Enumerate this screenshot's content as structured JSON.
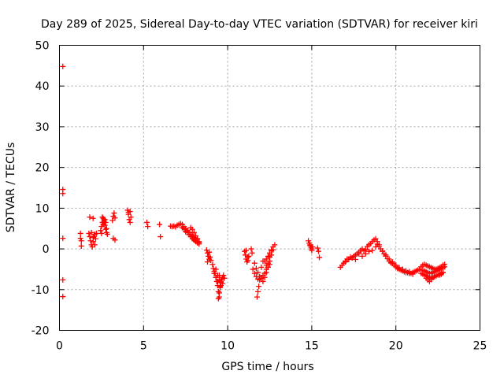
{
  "chart_data": {
    "type": "scatter",
    "title": "Day 289 of 2025, Sidereal Day-to-day VTEC variation (SDTVAR) for receiver kiri",
    "xlabel": "GPS time / hours",
    "ylabel": "SDTVAR / TECUs",
    "xlim": [
      0,
      25
    ],
    "ylim": [
      -20,
      50
    ],
    "grid": true,
    "marker": "+",
    "marker_color": "#ff0000",
    "xticks": [
      0,
      5,
      10,
      15,
      20,
      25
    ],
    "yticks": [
      -20,
      -10,
      0,
      10,
      20,
      30,
      40,
      50
    ],
    "xtick_labels": [
      "0",
      "5",
      "10",
      "15",
      "20",
      "25"
    ],
    "ytick_labels": [
      "-20",
      "-10",
      "0",
      "10",
      "20",
      "30",
      "40",
      "50"
    ],
    "series": [
      {
        "name": "SDTVAR",
        "x": [
          0.2,
          0.2,
          0.2,
          0.2,
          0.2,
          0.2,
          1.25,
          1.25,
          1.3,
          1.3,
          1.75,
          1.8,
          1.85,
          1.9,
          1.95,
          2.0,
          2.05,
          2.1,
          2.15,
          1.8,
          1.9,
          2.0,
          2.1,
          2.2,
          2.0,
          2.45,
          2.5,
          2.55,
          2.6,
          2.65,
          2.7,
          2.75,
          2.8,
          2.85,
          2.5,
          2.6,
          2.7,
          2.8,
          2.55,
          2.65,
          2.75,
          3.15,
          3.2,
          3.25,
          3.3,
          3.2,
          3.3,
          4.05,
          4.1,
          4.15,
          4.2,
          4.25,
          4.1,
          4.2,
          5.2,
          5.25,
          5.95,
          6.0,
          6.6,
          6.7,
          6.8,
          6.9,
          7.0,
          7.1,
          7.2,
          7.3,
          7.4,
          7.5,
          7.6,
          7.7,
          7.8,
          7.9,
          8.0,
          8.1,
          8.2,
          8.3,
          7.3,
          7.4,
          7.5,
          7.6,
          7.7,
          7.8,
          7.9,
          8.0,
          8.1,
          8.2,
          7.5,
          7.6,
          7.7,
          7.8,
          7.9,
          8.0,
          8.1,
          8.2,
          8.3,
          7.8,
          7.9,
          8.0,
          8.1,
          8.2,
          8.3,
          8.75,
          8.8,
          8.85,
          8.9,
          8.95,
          9.0,
          8.8,
          8.9,
          9.1,
          9.15,
          9.2,
          9.25,
          9.3,
          9.35,
          9.4,
          9.45,
          9.5,
          9.55,
          9.6,
          9.65,
          9.7,
          9.75,
          9.8,
          9.2,
          9.3,
          9.4,
          9.5,
          9.6,
          9.7,
          9.3,
          9.4,
          9.5,
          9.6,
          9.45,
          9.5,
          9.55,
          9.6,
          11.0,
          11.05,
          11.1,
          11.15,
          11.2,
          11.25,
          11.1,
          11.2,
          11.4,
          11.45,
          11.5,
          11.6,
          11.7,
          11.8,
          11.9,
          12.0,
          12.1,
          11.6,
          11.7,
          11.8,
          11.9,
          11.75,
          11.8,
          11.85,
          12.1,
          12.2,
          12.3,
          12.4,
          12.5,
          12.6,
          12.7,
          12.8,
          12.2,
          12.3,
          12.4,
          12.5,
          12.6,
          12.7,
          12.2,
          12.3,
          12.4,
          12.5,
          12.6,
          12.3,
          12.4,
          12.5,
          12.0,
          12.1,
          14.8,
          14.85,
          14.9,
          14.95,
          15.0,
          15.05,
          14.9,
          15.0,
          15.35,
          15.4,
          15.45,
          16.7,
          16.8,
          16.9,
          17.0,
          17.1,
          17.2,
          17.3,
          17.4,
          17.5,
          17.6,
          17.7,
          17.8,
          17.9,
          18.0,
          18.1,
          18.2,
          18.3,
          18.4,
          18.5,
          18.6,
          18.7,
          18.8,
          18.9,
          19.0,
          17.0,
          17.2,
          17.4,
          17.6,
          17.8,
          18.0,
          18.2,
          18.4,
          18.6,
          18.8,
          18.9,
          19.0,
          19.1,
          19.2,
          19.3,
          19.4,
          19.5,
          19.6,
          19.7,
          19.8,
          19.9,
          20.0,
          20.1,
          20.2,
          20.3,
          20.4,
          20.5,
          20.6,
          20.7,
          20.8,
          20.9,
          21.0,
          21.1,
          21.2,
          21.3,
          19.2,
          19.4,
          19.6,
          19.8,
          20.0,
          20.2,
          20.4,
          20.6,
          20.8,
          21.0,
          21.4,
          21.5,
          21.6,
          21.7,
          21.8,
          21.9,
          22.0,
          22.1,
          22.2,
          22.3,
          22.4,
          22.5,
          22.6,
          22.7,
          22.8,
          22.9,
          21.5,
          21.6,
          21.7,
          21.8,
          21.9,
          22.0,
          22.1,
          22.2,
          22.3,
          22.4,
          22.5,
          22.6,
          22.7,
          22.8,
          21.6,
          21.7,
          21.8,
          21.9,
          22.0,
          22.1,
          22.2,
          22.3,
          22.4,
          22.5,
          22.6,
          22.7,
          22.8,
          22.9,
          21.8,
          21.9,
          22.0,
          22.1,
          22.2,
          22.3,
          22.6,
          22.7,
          22.8
        ],
        "y": [
          44.8,
          14.6,
          13.6,
          2.6,
          -7.6,
          -11.7,
          3.8,
          2.6,
          0.7,
          2.0,
          3.8,
          3.0,
          2.0,
          1.0,
          0.5,
          1.8,
          3.0,
          3.6,
          2.5,
          7.8,
          4.0,
          2.8,
          1.0,
          3.8,
          7.5,
          4.5,
          5.5,
          6.5,
          7.5,
          6.8,
          5.8,
          4.8,
          4.0,
          3.6,
          3.8,
          6.0,
          7.2,
          5.0,
          7.8,
          7.2,
          6.5,
          7.0,
          8.0,
          8.8,
          7.6,
          2.6,
          2.2,
          9.5,
          8.5,
          7.2,
          6.5,
          7.8,
          9.0,
          9.2,
          6.5,
          5.5,
          6.0,
          3.0,
          5.6,
          5.5,
          5.6,
          5.4,
          5.8,
          6.0,
          6.2,
          6.0,
          5.5,
          5.0,
          4.5,
          4.0,
          3.5,
          3.0,
          2.5,
          2.0,
          1.8,
          1.5,
          5.2,
          5.0,
          4.8,
          4.4,
          4.0,
          3.6,
          3.2,
          2.8,
          2.6,
          2.4,
          4.2,
          4.0,
          3.5,
          3.0,
          2.5,
          2.2,
          1.8,
          1.5,
          1.2,
          5.2,
          4.8,
          4.0,
          3.2,
          2.5,
          1.8,
          -0.3,
          -1.0,
          -1.8,
          -2.5,
          -2.0,
          -2.8,
          -3.2,
          -0.8,
          -3.8,
          -4.8,
          -5.5,
          -6.0,
          -7.0,
          -8.0,
          -9.0,
          -10.5,
          -11.8,
          -9.5,
          -8.0,
          -7.5,
          -7.0,
          -6.5,
          -7.2,
          -6.0,
          -7.0,
          -8.0,
          -6.5,
          -7.5,
          -8.5,
          -5.0,
          -6.5,
          -7.8,
          -9.0,
          -12.2,
          -10.8,
          -9.2,
          -8.2,
          -0.6,
          -1.5,
          -2.5,
          -3.2,
          -2.8,
          -1.8,
          -0.4,
          -2.0,
          0.0,
          -1.0,
          -5.0,
          -6.0,
          -6.8,
          -7.4,
          -7.6,
          -7.2,
          -6.5,
          -3.5,
          -4.8,
          -5.8,
          -6.8,
          -11.8,
          -10.5,
          -9.2,
          -8.0,
          -7.0,
          -5.8,
          -4.5,
          -3.0,
          -1.5,
          -0.2,
          1.0,
          -6.0,
          -5.0,
          -3.5,
          -2.0,
          -0.5,
          0.5,
          -3.0,
          -2.5,
          -1.8,
          -1.0,
          -0.2,
          -4.0,
          -4.5,
          -3.8,
          -4.5,
          -3.0,
          2.0,
          1.4,
          0.8,
          0.4,
          0.0,
          0.5,
          1.0,
          -0.4,
          0.2,
          -0.6,
          -2.1,
          -4.5,
          -4.0,
          -3.5,
          -3.0,
          -2.5,
          -2.5,
          -2.0,
          -2.2,
          -1.8,
          -1.5,
          -1.2,
          -0.8,
          -0.4,
          0.0,
          -0.5,
          -0.2,
          0.6,
          1.0,
          1.3,
          1.8,
          2.2,
          2.5,
          1.8,
          1.0,
          -3.2,
          -2.6,
          -2.2,
          -2.6,
          -1.2,
          -1.8,
          -1.2,
          -0.6,
          -0.4,
          0.5,
          1.2,
          0.6,
          0.0,
          -0.6,
          -1.2,
          -1.8,
          -2.4,
          -3.0,
          -3.4,
          -3.6,
          -4.0,
          -4.4,
          -4.8,
          -5.0,
          -5.2,
          -5.4,
          -5.6,
          -5.8,
          -5.8,
          -6.0,
          -6.0,
          -5.8,
          -5.6,
          -5.4,
          -5.2,
          -0.5,
          -1.5,
          -2.5,
          -3.2,
          -4.0,
          -4.6,
          -5.0,
          -5.4,
          -5.6,
          -6.2,
          -5.0,
          -4.4,
          -4.0,
          -3.8,
          -4.0,
          -4.2,
          -4.4,
          -4.6,
          -4.8,
          -5.0,
          -5.0,
          -4.8,
          -4.6,
          -4.4,
          -4.0,
          -3.8,
          -6.0,
          -6.2,
          -6.4,
          -6.6,
          -6.8,
          -7.0,
          -7.2,
          -7.0,
          -6.8,
          -6.6,
          -6.4,
          -6.2,
          -6.0,
          -5.8,
          -5.2,
          -5.4,
          -5.6,
          -5.8,
          -6.0,
          -6.0,
          -5.8,
          -5.6,
          -5.4,
          -5.2,
          -5.0,
          -4.8,
          -4.6,
          -4.4,
          -7.2,
          -7.6,
          -8.0,
          -7.5,
          -7.0,
          -6.8,
          -6.4,
          -6.2,
          -5.8
        ]
      }
    ]
  }
}
